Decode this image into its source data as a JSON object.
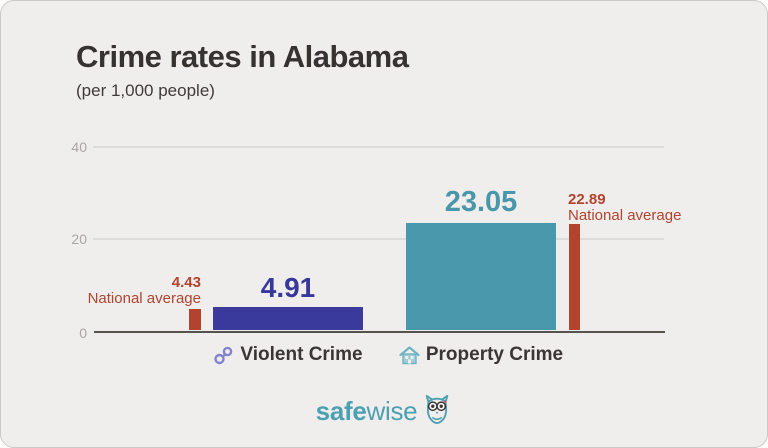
{
  "header": {
    "title": "Crime rates in Alabama",
    "subtitle": "(per 1,000 people)"
  },
  "chart_data": {
    "type": "bar",
    "title": "Crime rates in Alabama",
    "subtitle": "(per 1,000 people)",
    "categories": [
      "Violent Crime",
      "Property Crime"
    ],
    "series": [
      {
        "name": "Alabama",
        "values": [
          4.91,
          23.05
        ]
      },
      {
        "name": "National average",
        "values": [
          4.43,
          22.89
        ]
      }
    ],
    "ylim": [
      0,
      40
    ],
    "ytick_labels": [
      "0",
      "20",
      "40"
    ],
    "grid": true,
    "legend": "none",
    "category_icons": [
      "handcuffs-icon",
      "house-icon"
    ],
    "colors": {
      "violent_bar": "#3a3a9c",
      "property_bar": "#4a98ac",
      "national_bar": "#b2432e",
      "background": "#efeeed",
      "axis_line": "#56524e",
      "gridline": "#dddcdb",
      "tick_text": "#a9a6a3",
      "title_text": "#363230"
    },
    "labels": {
      "violent_value": "4.91",
      "property_value": "23.05",
      "national_violent_value": "4.43",
      "national_property_value": "22.89",
      "national_caption": "National average"
    }
  },
  "footer": {
    "brand_bold": "safe",
    "brand_light": "wise",
    "brand_color": "#4d9fb2",
    "owl_icon": "owl-icon"
  }
}
